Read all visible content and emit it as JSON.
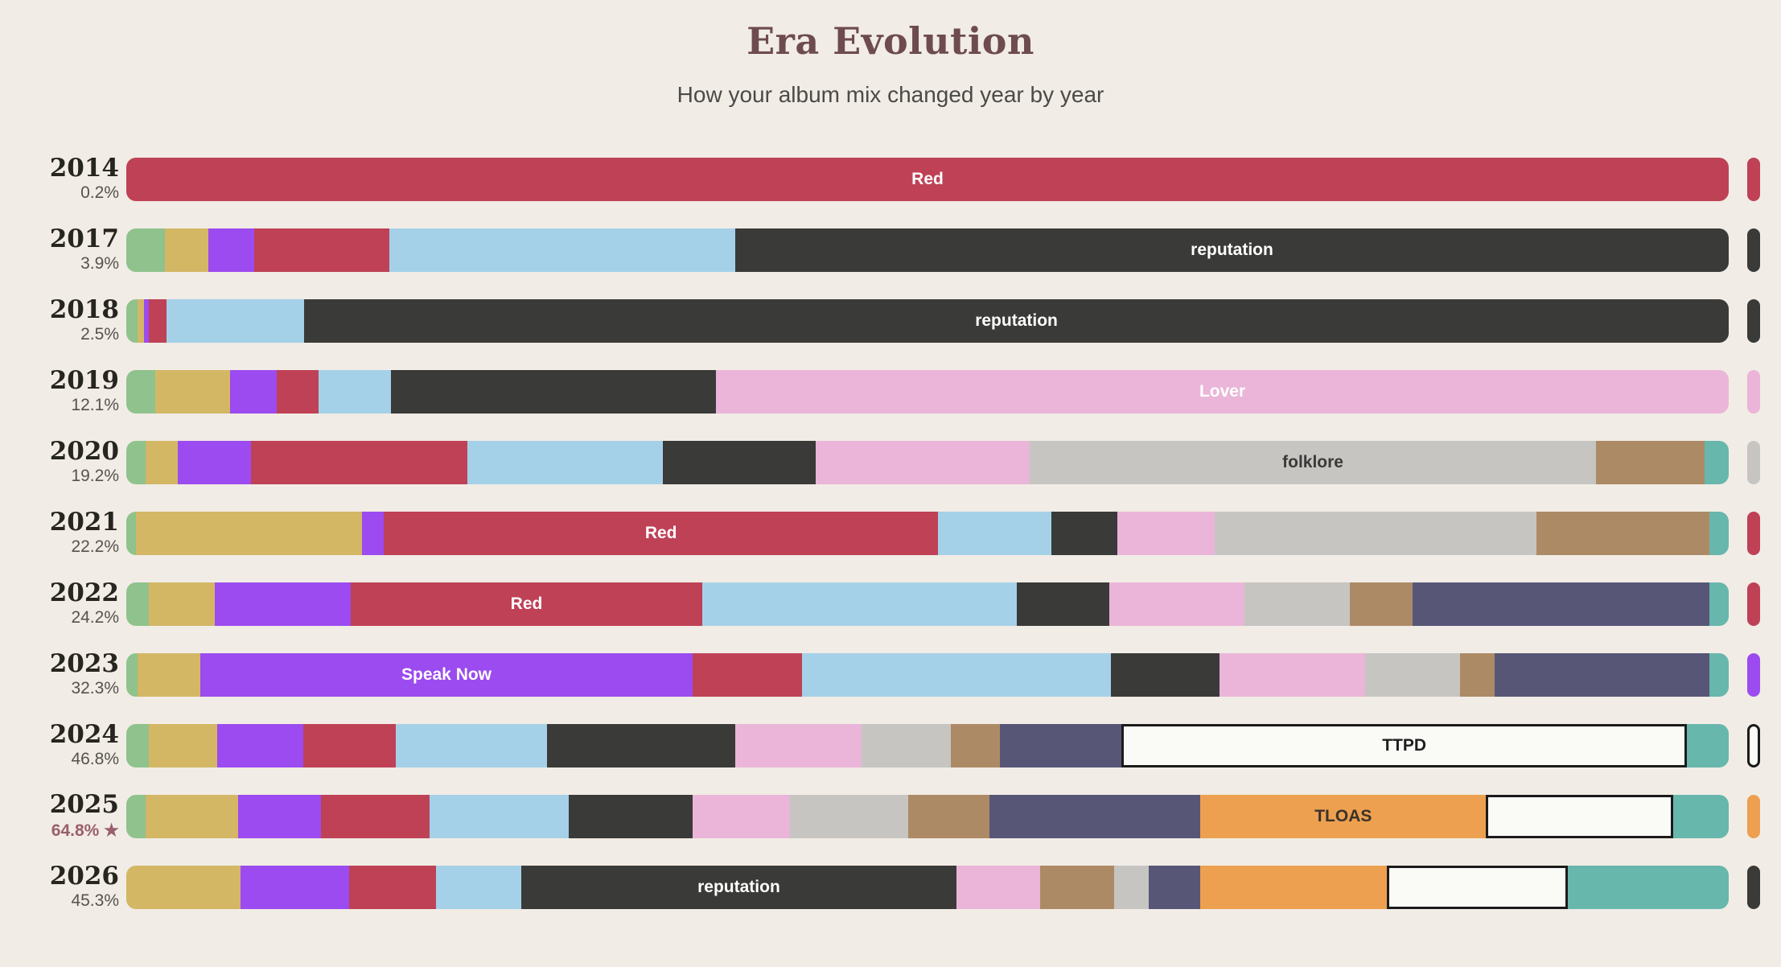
{
  "header": {
    "title": "Era Evolution",
    "subtitle": "How your album mix changed year by year"
  },
  "palette": {
    "background": "#F1ECE5",
    "title_color": "#6E4B4E",
    "subtitle_color": "#4A4A48",
    "year_color": "#26251F",
    "pct_color": "#55534D",
    "pct_starred_color": "#9A5F6B",
    "outline_color": "#1B1B1B"
  },
  "albums": {
    "green": {
      "color": "#8FC28C"
    },
    "gold": {
      "color": "#D3B765"
    },
    "speak_now": {
      "color": "#9B4BEF",
      "label_color": "#FFFFFF"
    },
    "red": {
      "color": "#BF4156",
      "label_color": "#FFFFFF"
    },
    "sky": {
      "color": "#A5D1E8"
    },
    "reputation": {
      "color": "#3A3A38",
      "label_color": "#FFFFFF"
    },
    "lover": {
      "color": "#EAB5D8",
      "label_color": "#FFFFFF"
    },
    "folklore": {
      "color": "#C6C5C2",
      "label_color": "#3A3A38"
    },
    "tan": {
      "color": "#AD8A66"
    },
    "slate": {
      "color": "#575677"
    },
    "tloas": {
      "color": "#EDA04F",
      "label_color": "#3A332B"
    },
    "ttpd": {
      "color": "#FAFAF6",
      "label_color": "#1F1F1F",
      "outlined": true
    },
    "teal": {
      "color": "#67B7AD"
    }
  },
  "chart_data": {
    "type": "bar",
    "orientation": "horizontal_stacked",
    "title": "Era Evolution",
    "subtitle": "How your album mix changed year by year",
    "value_unit": "percent_of_year_mix",
    "categories": [
      "2014",
      "2017",
      "2018",
      "2019",
      "2020",
      "2021",
      "2022",
      "2023",
      "2024",
      "2025",
      "2026"
    ],
    "rows": [
      {
        "year": "2014",
        "share": "0.2%",
        "starred": false,
        "pill": "red",
        "segments": [
          {
            "a": "red",
            "v": 100,
            "label": "Red"
          }
        ]
      },
      {
        "year": "2017",
        "share": "3.9%",
        "starred": false,
        "pill": "reputation",
        "segments": [
          {
            "a": "green",
            "v": 2.4
          },
          {
            "a": "gold",
            "v": 2.7
          },
          {
            "a": "speak_now",
            "v": 2.9
          },
          {
            "a": "red",
            "v": 8.4
          },
          {
            "a": "sky",
            "v": 21.6
          },
          {
            "a": "reputation",
            "v": 62.0,
            "label": "reputation"
          }
        ]
      },
      {
        "year": "2018",
        "share": "2.5%",
        "starred": false,
        "pill": "reputation",
        "segments": [
          {
            "a": "green",
            "v": 0.7
          },
          {
            "a": "gold",
            "v": 0.4
          },
          {
            "a": "speak_now",
            "v": 0.3
          },
          {
            "a": "red",
            "v": 1.1
          },
          {
            "a": "sky",
            "v": 8.6
          },
          {
            "a": "reputation",
            "v": 88.9,
            "label": "reputation"
          }
        ]
      },
      {
        "year": "2019",
        "share": "12.1%",
        "starred": false,
        "pill": "lover",
        "segments": [
          {
            "a": "green",
            "v": 1.8
          },
          {
            "a": "gold",
            "v": 4.7
          },
          {
            "a": "speak_now",
            "v": 2.9
          },
          {
            "a": "red",
            "v": 2.6
          },
          {
            "a": "sky",
            "v": 4.5
          },
          {
            "a": "reputation",
            "v": 20.3
          },
          {
            "a": "lover",
            "v": 63.2,
            "label": "Lover"
          }
        ]
      },
      {
        "year": "2020",
        "share": "19.2%",
        "starred": false,
        "pill": "folklore",
        "segments": [
          {
            "a": "green",
            "v": 1.2
          },
          {
            "a": "gold",
            "v": 2.0
          },
          {
            "a": "speak_now",
            "v": 4.6
          },
          {
            "a": "red",
            "v": 13.5
          },
          {
            "a": "sky",
            "v": 12.2
          },
          {
            "a": "reputation",
            "v": 9.5
          },
          {
            "a": "lover",
            "v": 13.4
          },
          {
            "a": "folklore",
            "v": 35.3,
            "label": "folklore"
          },
          {
            "a": "tan",
            "v": 6.8
          },
          {
            "a": "teal",
            "v": 1.5
          }
        ]
      },
      {
        "year": "2021",
        "share": "22.2%",
        "starred": false,
        "pill": "red",
        "segments": [
          {
            "a": "green",
            "v": 0.6
          },
          {
            "a": "gold",
            "v": 14.1
          },
          {
            "a": "speak_now",
            "v": 1.4
          },
          {
            "a": "red",
            "v": 34.6,
            "label": "Red"
          },
          {
            "a": "sky",
            "v": 7.1
          },
          {
            "a": "reputation",
            "v": 4.1
          },
          {
            "a": "lover",
            "v": 6.1
          },
          {
            "a": "folklore",
            "v": 20.1
          },
          {
            "a": "tan",
            "v": 10.8
          },
          {
            "a": "teal",
            "v": 1.2
          }
        ]
      },
      {
        "year": "2022",
        "share": "24.2%",
        "starred": false,
        "pill": "red",
        "segments": [
          {
            "a": "green",
            "v": 1.4
          },
          {
            "a": "gold",
            "v": 4.1
          },
          {
            "a": "speak_now",
            "v": 8.5
          },
          {
            "a": "red",
            "v": 21.9,
            "label": "Red"
          },
          {
            "a": "sky",
            "v": 19.6
          },
          {
            "a": "reputation",
            "v": 5.8
          },
          {
            "a": "lover",
            "v": 8.4
          },
          {
            "a": "folklore",
            "v": 6.6
          },
          {
            "a": "tan",
            "v": 3.9
          },
          {
            "a": "slate",
            "v": 18.5
          },
          {
            "a": "teal",
            "v": 1.2
          }
        ]
      },
      {
        "year": "2023",
        "share": "32.3%",
        "starred": false,
        "pill": "speak_now",
        "segments": [
          {
            "a": "green",
            "v": 0.7
          },
          {
            "a": "gold",
            "v": 3.9
          },
          {
            "a": "speak_now",
            "v": 30.8,
            "label": "Speak Now"
          },
          {
            "a": "red",
            "v": 6.8
          },
          {
            "a": "sky",
            "v": 19.3
          },
          {
            "a": "reputation",
            "v": 6.8
          },
          {
            "a": "lover",
            "v": 9.1
          },
          {
            "a": "folklore",
            "v": 5.9
          },
          {
            "a": "tan",
            "v": 2.2
          },
          {
            "a": "slate",
            "v": 13.4
          },
          {
            "a": "teal",
            "v": 1.2
          }
        ]
      },
      {
        "year": "2024",
        "share": "46.8%",
        "starred": false,
        "pill": "ttpd",
        "segments": [
          {
            "a": "green",
            "v": 1.4
          },
          {
            "a": "gold",
            "v": 4.3
          },
          {
            "a": "speak_now",
            "v": 5.4
          },
          {
            "a": "red",
            "v": 5.8
          },
          {
            "a": "sky",
            "v": 9.5
          },
          {
            "a": "reputation",
            "v": 11.8
          },
          {
            "a": "lover",
            "v": 7.9
          },
          {
            "a": "folklore",
            "v": 5.6
          },
          {
            "a": "tan",
            "v": 3.1
          },
          {
            "a": "slate",
            "v": 7.6
          },
          {
            "a": "ttpd",
            "v": 35.2,
            "label": "TTPD"
          },
          {
            "a": "teal",
            "v": 2.6
          }
        ]
      },
      {
        "year": "2025",
        "share": "64.8%",
        "starred": true,
        "pill": "tloas",
        "segments": [
          {
            "a": "green",
            "v": 1.2
          },
          {
            "a": "gold",
            "v": 5.8
          },
          {
            "a": "speak_now",
            "v": 5.2
          },
          {
            "a": "red",
            "v": 6.8
          },
          {
            "a": "sky",
            "v": 8.7
          },
          {
            "a": "reputation",
            "v": 7.8
          },
          {
            "a": "lover",
            "v": 6.1
          },
          {
            "a": "folklore",
            "v": 7.4
          },
          {
            "a": "tan",
            "v": 5.1
          },
          {
            "a": "slate",
            "v": 13.2
          },
          {
            "a": "tloas",
            "v": 17.9,
            "label": "TLOAS"
          },
          {
            "a": "ttpd",
            "v": 11.4
          },
          {
            "a": "teal",
            "v": 3.5
          }
        ]
      },
      {
        "year": "2026",
        "share": "45.3%",
        "starred": false,
        "pill": "reputation",
        "segments": [
          {
            "a": "gold",
            "v": 7.1
          },
          {
            "a": "speak_now",
            "v": 6.8
          },
          {
            "a": "red",
            "v": 5.4
          },
          {
            "a": "sky",
            "v": 5.3
          },
          {
            "a": "reputation",
            "v": 27.1,
            "label": "reputation"
          },
          {
            "a": "lover",
            "v": 5.2
          },
          {
            "a": "tan",
            "v": 4.6
          },
          {
            "a": "folklore",
            "v": 2.2
          },
          {
            "a": "slate",
            "v": 3.2
          },
          {
            "a": "tloas",
            "v": 11.6
          },
          {
            "a": "ttpd",
            "v": 11.0
          },
          {
            "a": "teal",
            "v": 10.0
          }
        ]
      }
    ]
  }
}
